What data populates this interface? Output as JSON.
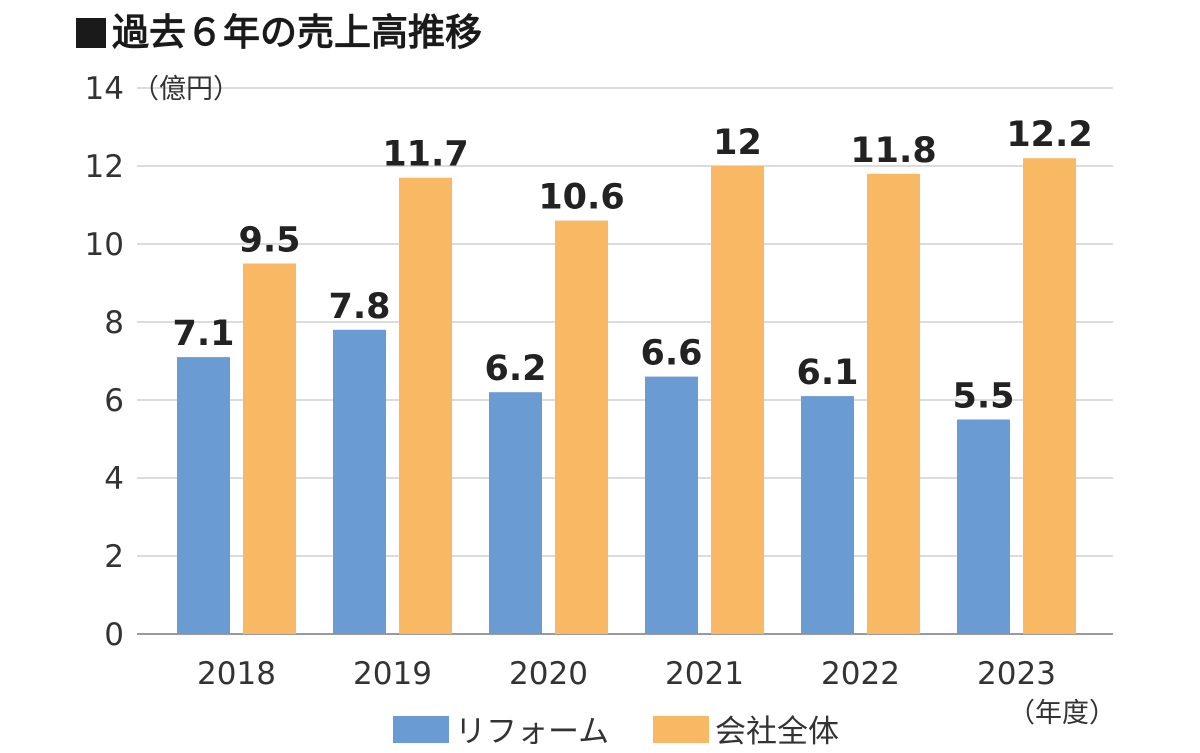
{
  "title": "過去６年の売上高推移",
  "chart_data": {
    "type": "bar",
    "categories": [
      "2018",
      "2019",
      "2020",
      "2021",
      "2022",
      "2023"
    ],
    "series": [
      {
        "name": "リフォーム",
        "color": "#6a9bd2",
        "values": [
          7.1,
          7.8,
          6.2,
          6.6,
          6.1,
          5.5
        ]
      },
      {
        "name": "会社全体",
        "color": "#f9b964",
        "values": [
          9.5,
          11.7,
          10.6,
          12,
          11.8,
          12.2
        ]
      }
    ],
    "y_unit": "（億円）",
    "x_unit": "（年度）",
    "ylim": [
      0,
      14
    ],
    "yticks": [
      0,
      2,
      4,
      6,
      8,
      10,
      12,
      14
    ],
    "grid": true,
    "legend_position": "bottom"
  }
}
